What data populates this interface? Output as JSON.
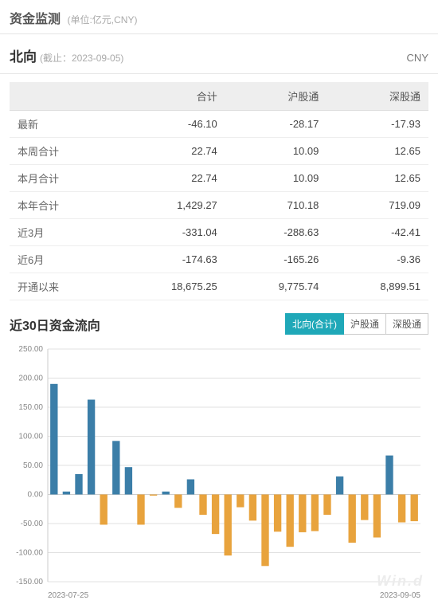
{
  "header": {
    "title": "资金监测",
    "unit": "(单位:亿元,CNY)"
  },
  "subheader": {
    "direction": "北向",
    "date_label": "(截止：2023-09-05)",
    "currency": "CNY"
  },
  "table": {
    "columns": [
      "",
      "合计",
      "沪股通",
      "深股通"
    ],
    "rows": [
      {
        "label": "最新",
        "total": "-46.10",
        "hu": "-28.17",
        "shen": "-17.93"
      },
      {
        "label": "本周合计",
        "total": "22.74",
        "hu": "10.09",
        "shen": "12.65"
      },
      {
        "label": "本月合计",
        "total": "22.74",
        "hu": "10.09",
        "shen": "12.65"
      },
      {
        "label": "本年合计",
        "total": "1,429.27",
        "hu": "710.18",
        "shen": "719.09"
      },
      {
        "label": "近3月",
        "total": "-331.04",
        "hu": "-288.63",
        "shen": "-42.41"
      },
      {
        "label": "近6月",
        "total": "-174.63",
        "hu": "-165.26",
        "shen": "-9.36"
      },
      {
        "label": "开通以来",
        "total": "18,675.25",
        "hu": "9,775.74",
        "shen": "8,899.51"
      }
    ]
  },
  "chart": {
    "title": "近30日资金流向",
    "tabs": [
      "北向(合计)",
      "沪股通",
      "深股通"
    ],
    "active_tab": 0,
    "type": "bar",
    "ylim": [
      -150,
      250
    ],
    "ytick_step": 50,
    "yticks": [
      -150,
      -100,
      -50,
      0,
      50,
      100,
      150,
      200,
      250
    ],
    "x_start_label": "2023-07-25",
    "x_end_label": "2023-09-05",
    "positive_color": "#3b7ea8",
    "negative_color": "#e8a33d",
    "grid_color": "#e0e0e0",
    "axis_color": "#cccccc",
    "tick_font_size": 10,
    "tick_color": "#888888",
    "bar_width_ratio": 0.6,
    "watermark": "Win.d",
    "values": [
      190,
      5,
      35,
      163,
      -52,
      92,
      47,
      -52,
      -2,
      5,
      -23,
      26,
      -35,
      -68,
      -105,
      -22,
      -45,
      -123,
      -64,
      -90,
      -65,
      -63,
      -35,
      31,
      -83,
      -44,
      -74,
      67,
      -48,
      -46
    ]
  }
}
